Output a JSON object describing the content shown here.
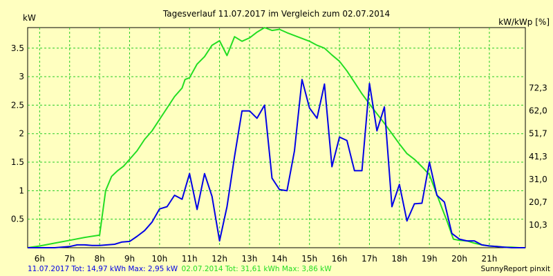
{
  "chart_data": {
    "type": "line",
    "title": "Tagesverlauf 11.07.2017 im Vergleich zum 02.07.2014",
    "ylabel_left": "kW",
    "ylabel_right": "kW/kWp [%]",
    "xlim": [
      5.6,
      22.2
    ],
    "ylim": [
      0,
      3.86
    ],
    "x_ticks": [
      6,
      7,
      8,
      9,
      10,
      11,
      12,
      13,
      14,
      15,
      16,
      17,
      18,
      19,
      20,
      21
    ],
    "x_tick_labels": [
      "6h",
      "7h",
      "8h",
      "9h",
      "10h",
      "11h",
      "12h",
      "13h",
      "14h",
      "15h",
      "16h",
      "17h",
      "18h",
      "19h",
      "20h",
      "21h"
    ],
    "y_ticks_left": [
      0.5,
      1,
      1.5,
      2,
      2.5,
      3,
      3.5
    ],
    "y_tick_labels_left": [
      "0.5",
      "1",
      "1.5",
      "2",
      "2.5",
      "3",
      "3.5"
    ],
    "y_ticks_right_kw": [
      0.4,
      0.8,
      1.2,
      1.6,
      2.0,
      2.4,
      2.8
    ],
    "y_tick_labels_right": [
      "10,3",
      "20,7",
      "31,0",
      "41,3",
      "51,7",
      "62,0",
      "72,3"
    ],
    "grid": true,
    "series": [
      {
        "name": "11.07.2017",
        "color": "#0000e6",
        "x": [
          5.6,
          6.0,
          6.5,
          7.0,
          7.25,
          7.5,
          7.75,
          8.0,
          8.25,
          8.5,
          8.75,
          9.0,
          9.25,
          9.5,
          9.75,
          10.0,
          10.25,
          10.5,
          10.75,
          11.0,
          11.25,
          11.5,
          11.75,
          12.0,
          12.25,
          12.5,
          12.75,
          13.0,
          13.25,
          13.5,
          13.75,
          14.0,
          14.25,
          14.5,
          14.75,
          15.0,
          15.25,
          15.5,
          15.75,
          16.0,
          16.25,
          16.5,
          16.75,
          17.0,
          17.25,
          17.5,
          17.75,
          18.0,
          18.25,
          18.5,
          18.75,
          19.0,
          19.25,
          19.5,
          19.75,
          20.0,
          20.25,
          20.5,
          20.75,
          21.0,
          21.25,
          21.5,
          21.75,
          22.0,
          22.2
        ],
        "values": [
          0,
          0.0,
          0.0,
          0.02,
          0.05,
          0.05,
          0.04,
          0.04,
          0.05,
          0.06,
          0.1,
          0.11,
          0.2,
          0.3,
          0.45,
          0.68,
          0.72,
          0.92,
          0.85,
          1.3,
          0.67,
          1.3,
          0.9,
          0.12,
          0.72,
          1.6,
          2.4,
          2.4,
          2.27,
          2.5,
          1.22,
          1.02,
          1.0,
          1.7,
          2.95,
          2.45,
          2.27,
          2.87,
          1.42,
          1.94,
          1.88,
          1.35,
          1.35,
          2.88,
          2.05,
          2.47,
          0.72,
          1.11,
          0.47,
          0.77,
          0.78,
          1.5,
          0.92,
          0.8,
          0.25,
          0.15,
          0.12,
          0.12,
          0.05,
          0.03,
          0.02,
          0.01,
          0.0,
          0.0,
          0.0
        ]
      },
      {
        "name": "02.07.2014",
        "color": "#22dd22",
        "x": [
          5.6,
          6.0,
          6.5,
          7.0,
          7.5,
          8.0,
          8.2,
          8.4,
          8.6,
          8.8,
          9.0,
          9.25,
          9.5,
          9.75,
          10.0,
          10.25,
          10.5,
          10.75,
          10.85,
          11.0,
          11.25,
          11.5,
          11.75,
          12.0,
          12.25,
          12.5,
          12.75,
          13.0,
          13.25,
          13.5,
          13.75,
          14.0,
          14.25,
          14.5,
          14.75,
          15.0,
          15.25,
          15.5,
          15.75,
          16.0,
          16.25,
          16.5,
          16.75,
          17.0,
          17.25,
          17.5,
          17.75,
          18.0,
          18.25,
          18.5,
          18.75,
          19.0,
          19.2,
          19.4,
          19.6,
          19.8,
          20.0,
          20.25,
          20.5,
          20.75,
          21.0,
          21.25,
          21.5,
          21.75,
          22.0,
          22.2
        ],
        "values": [
          0,
          0.03,
          0.08,
          0.13,
          0.18,
          0.22,
          1.0,
          1.25,
          1.35,
          1.43,
          1.55,
          1.7,
          1.9,
          2.05,
          2.25,
          2.45,
          2.65,
          2.8,
          2.95,
          2.98,
          3.22,
          3.35,
          3.55,
          3.63,
          3.37,
          3.7,
          3.62,
          3.68,
          3.78,
          3.86,
          3.81,
          3.83,
          3.77,
          3.72,
          3.67,
          3.62,
          3.55,
          3.5,
          3.38,
          3.27,
          3.1,
          2.9,
          2.7,
          2.52,
          2.35,
          2.18,
          2.0,
          1.82,
          1.65,
          1.55,
          1.42,
          1.28,
          1.0,
          0.72,
          0.45,
          0.15,
          0.13,
          0.12,
          0.08,
          0.05,
          0.03,
          0.02,
          0.01,
          0.01,
          0.0,
          0.0
        ]
      }
    ]
  },
  "footer": {
    "series1_text": "11.07.2017 Tot: 14,97 kWh Max: 2,95 kW",
    "series2_text": "02.07.2014 Tot: 31,61 kWh Max: 3,86 kW",
    "credit": "SunnyReport pinxit",
    "series1_color": "#0000e6",
    "series2_color": "#22dd22"
  }
}
